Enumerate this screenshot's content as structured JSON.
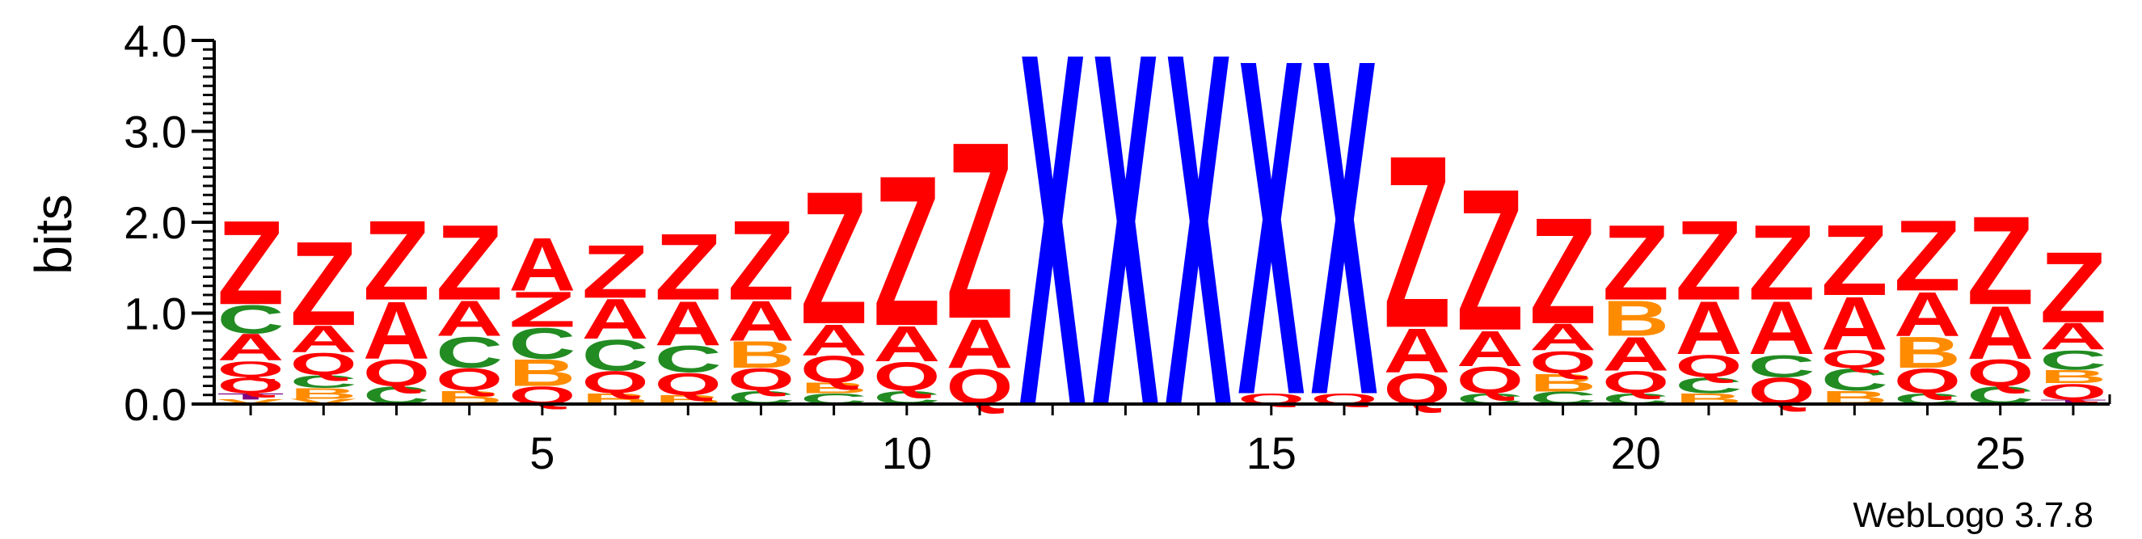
{
  "chart_data": {
    "type": "sequence-logo",
    "ylabel": "bits",
    "ylim": [
      0,
      4.0
    ],
    "y_ticks": [
      "0.0",
      "1.0",
      "2.0",
      "3.0",
      "4.0"
    ],
    "y_tick_values": [
      0,
      1,
      2,
      3,
      4
    ],
    "x_ticks": [
      "5",
      "10",
      "15",
      "20",
      "25"
    ],
    "x_tick_values": [
      5,
      10,
      15,
      20,
      25
    ],
    "xlim": [
      0.5,
      26.5
    ],
    "credit": "WebLogo 3.7.8",
    "colors": {
      "Z": "#ff0000",
      "A": "#ff0000",
      "Q": "#ff0000",
      "X": "#0000ff",
      "C": "#228b22",
      "B": "#ff8c00",
      "T": "#800080",
      "V": "#ff8c00"
    },
    "positions": [
      {
        "pos": 1,
        "stack": [
          {
            "letter": "V",
            "height": 0.05
          },
          {
            "letter": "T",
            "height": 0.07
          },
          {
            "letter": "Q",
            "height": 0.18
          },
          {
            "letter": "Q",
            "height": 0.18
          },
          {
            "letter": "A",
            "height": 0.3
          },
          {
            "letter": "C",
            "height": 0.32
          },
          {
            "letter": "Z",
            "height": 0.95
          }
        ]
      },
      {
        "pos": 2,
        "stack": [
          {
            "letter": "V",
            "height": 0.06
          },
          {
            "letter": "B",
            "height": 0.12
          },
          {
            "letter": "C",
            "height": 0.14
          },
          {
            "letter": "Q",
            "height": 0.25
          },
          {
            "letter": "A",
            "height": 0.3
          },
          {
            "letter": "Z",
            "height": 0.95
          }
        ]
      },
      {
        "pos": 3,
        "stack": [
          {
            "letter": "C",
            "height": 0.2
          },
          {
            "letter": "Q",
            "height": 0.3
          },
          {
            "letter": "A",
            "height": 0.65
          },
          {
            "letter": "Z",
            "height": 0.9
          }
        ]
      },
      {
        "pos": 4,
        "stack": [
          {
            "letter": "B",
            "height": 0.15
          },
          {
            "letter": "Q",
            "height": 0.25
          },
          {
            "letter": "C",
            "height": 0.35
          },
          {
            "letter": "A",
            "height": 0.4
          },
          {
            "letter": "Z",
            "height": 0.85
          }
        ]
      },
      {
        "pos": 5,
        "stack": [
          {
            "letter": "Q",
            "height": 0.2
          },
          {
            "letter": "B",
            "height": 0.3
          },
          {
            "letter": "C",
            "height": 0.35
          },
          {
            "letter": "Z",
            "height": 0.4
          },
          {
            "letter": "A",
            "height": 0.6
          }
        ]
      },
      {
        "pos": 6,
        "stack": [
          {
            "letter": "B",
            "height": 0.12
          },
          {
            "letter": "Q",
            "height": 0.25
          },
          {
            "letter": "C",
            "height": 0.35
          },
          {
            "letter": "A",
            "height": 0.45
          },
          {
            "letter": "Z",
            "height": 0.6
          }
        ]
      },
      {
        "pos": 7,
        "stack": [
          {
            "letter": "B",
            "height": 0.1
          },
          {
            "letter": "Q",
            "height": 0.25
          },
          {
            "letter": "C",
            "height": 0.3
          },
          {
            "letter": "A",
            "height": 0.5
          },
          {
            "letter": "Z",
            "height": 0.75
          }
        ]
      },
      {
        "pos": 8,
        "stack": [
          {
            "letter": "C",
            "height": 0.15
          },
          {
            "letter": "Q",
            "height": 0.25
          },
          {
            "letter": "B",
            "height": 0.3
          },
          {
            "letter": "A",
            "height": 0.45
          },
          {
            "letter": "Z",
            "height": 0.9
          }
        ]
      },
      {
        "pos": 9,
        "stack": [
          {
            "letter": "C",
            "height": 0.12
          },
          {
            "letter": "B",
            "height": 0.12
          },
          {
            "letter": "Q",
            "height": 0.3
          },
          {
            "letter": "A",
            "height": 0.35
          },
          {
            "letter": "Z",
            "height": 1.5
          }
        ]
      },
      {
        "pos": 10,
        "stack": [
          {
            "letter": "C",
            "height": 0.15
          },
          {
            "letter": "Q",
            "height": 0.32
          },
          {
            "letter": "A",
            "height": 0.4
          },
          {
            "letter": "Z",
            "height": 1.7
          }
        ]
      },
      {
        "pos": 11,
        "stack": [
          {
            "letter": "Q",
            "height": 0.4
          },
          {
            "letter": "A",
            "height": 0.55
          },
          {
            "letter": "Z",
            "height": 2.0
          }
        ]
      },
      {
        "pos": 12,
        "stack": [
          {
            "letter": "X",
            "height": 4.0
          }
        ]
      },
      {
        "pos": 13,
        "stack": [
          {
            "letter": "X",
            "height": 4.0
          }
        ]
      },
      {
        "pos": 14,
        "stack": [
          {
            "letter": "X",
            "height": 4.0
          }
        ]
      },
      {
        "pos": 15,
        "stack": [
          {
            "letter": "Q",
            "height": 0.12
          },
          {
            "letter": "X",
            "height": 3.8
          }
        ]
      },
      {
        "pos": 16,
        "stack": [
          {
            "letter": "Q",
            "height": 0.12
          },
          {
            "letter": "X",
            "height": 3.8
          }
        ]
      },
      {
        "pos": 17,
        "stack": [
          {
            "letter": "Q",
            "height": 0.35
          },
          {
            "letter": "A",
            "height": 0.5
          },
          {
            "letter": "Z",
            "height": 1.95
          }
        ]
      },
      {
        "pos": 18,
        "stack": [
          {
            "letter": "C",
            "height": 0.12
          },
          {
            "letter": "Q",
            "height": 0.3
          },
          {
            "letter": "A",
            "height": 0.4
          },
          {
            "letter": "Z",
            "height": 1.6
          }
        ]
      },
      {
        "pos": 19,
        "stack": [
          {
            "letter": "C",
            "height": 0.14
          },
          {
            "letter": "B",
            "height": 0.2
          },
          {
            "letter": "Q",
            "height": 0.25
          },
          {
            "letter": "A",
            "height": 0.3
          },
          {
            "letter": "Z",
            "height": 1.2
          }
        ]
      },
      {
        "pos": 20,
        "stack": [
          {
            "letter": "C",
            "height": 0.12
          },
          {
            "letter": "Q",
            "height": 0.25
          },
          {
            "letter": "A",
            "height": 0.38
          },
          {
            "letter": "B",
            "height": 0.4
          },
          {
            "letter": "Z",
            "height": 0.85
          }
        ]
      },
      {
        "pos": 21,
        "stack": [
          {
            "letter": "B",
            "height": 0.12
          },
          {
            "letter": "C",
            "height": 0.18
          },
          {
            "letter": "Q",
            "height": 0.25
          },
          {
            "letter": "A",
            "height": 0.6
          },
          {
            "letter": "Z",
            "height": 0.9
          }
        ]
      },
      {
        "pos": 22,
        "stack": [
          {
            "letter": "Q",
            "height": 0.3
          },
          {
            "letter": "C",
            "height": 0.25
          },
          {
            "letter": "A",
            "height": 0.6
          },
          {
            "letter": "Z",
            "height": 0.85
          }
        ]
      },
      {
        "pos": 23,
        "stack": [
          {
            "letter": "B",
            "height": 0.15
          },
          {
            "letter": "C",
            "height": 0.25
          },
          {
            "letter": "Q",
            "height": 0.2
          },
          {
            "letter": "A",
            "height": 0.6
          },
          {
            "letter": "Z",
            "height": 0.8
          }
        ]
      },
      {
        "pos": 24,
        "stack": [
          {
            "letter": "C",
            "height": 0.12
          },
          {
            "letter": "Q",
            "height": 0.28
          },
          {
            "letter": "B",
            "height": 0.35
          },
          {
            "letter": "A",
            "height": 0.5
          },
          {
            "letter": "Z",
            "height": 0.8
          }
        ]
      },
      {
        "pos": 25,
        "stack": [
          {
            "letter": "C",
            "height": 0.2
          },
          {
            "letter": "Q",
            "height": 0.3
          },
          {
            "letter": "A",
            "height": 0.6
          },
          {
            "letter": "Z",
            "height": 1.0
          }
        ]
      },
      {
        "pos": 26,
        "stack": [
          {
            "letter": "T",
            "height": 0.05
          },
          {
            "letter": "Q",
            "height": 0.18
          },
          {
            "letter": "B",
            "height": 0.15
          },
          {
            "letter": "C",
            "height": 0.22
          },
          {
            "letter": "A",
            "height": 0.3
          },
          {
            "letter": "Z",
            "height": 0.8
          }
        ]
      }
    ]
  }
}
